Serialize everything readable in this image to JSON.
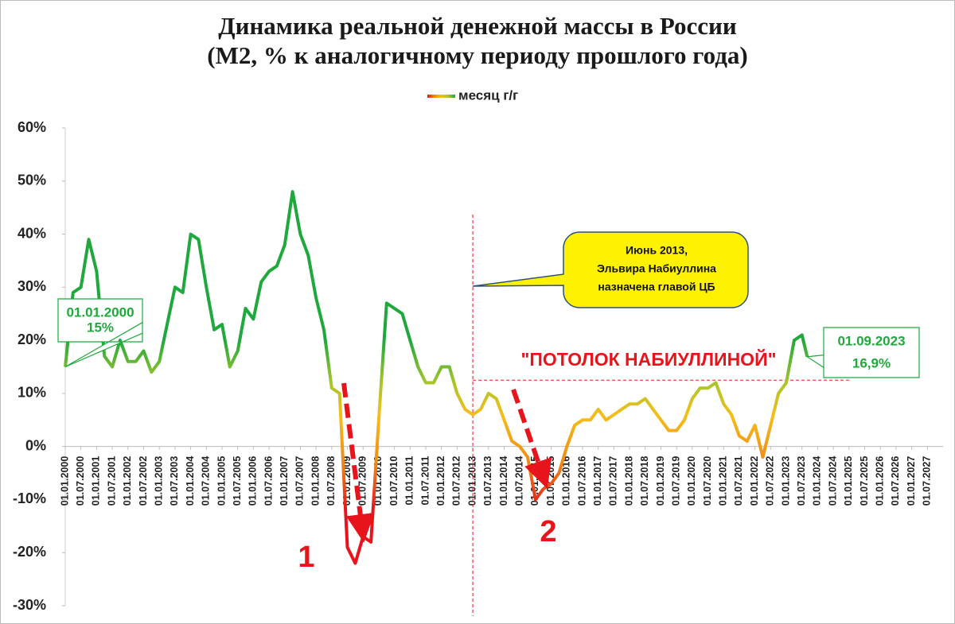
{
  "chart_data": {
    "type": "line",
    "title": "Динамика реальной денежной массы в России",
    "subtitle": "(М2, % к аналогичному периоду прошлого года)",
    "series": [
      {
        "name": "месяц г/г",
        "color_gradient": [
          {
            "value": 20,
            "color": "#1fa83c"
          },
          {
            "value": 12,
            "color": "#a6c62a"
          },
          {
            "value": 6,
            "color": "#f6be1a"
          },
          {
            "value": -3,
            "color": "#f08a14"
          },
          {
            "value": -12,
            "color": "#e8141b"
          }
        ],
        "x": [
          "01.01.2000",
          "01.04.2000",
          "01.07.2000",
          "01.10.2000",
          "01.01.2001",
          "01.04.2001",
          "01.07.2001",
          "01.10.2001",
          "01.01.2002",
          "01.04.2002",
          "01.07.2002",
          "01.10.2002",
          "01.01.2003",
          "01.04.2003",
          "01.07.2003",
          "01.10.2003",
          "01.01.2004",
          "01.04.2004",
          "01.07.2004",
          "01.10.2004",
          "01.01.2005",
          "01.04.2005",
          "01.07.2005",
          "01.10.2005",
          "01.01.2006",
          "01.04.2006",
          "01.07.2006",
          "01.10.2006",
          "01.01.2007",
          "01.04.2007",
          "01.07.2007",
          "01.10.2007",
          "01.01.2008",
          "01.04.2008",
          "01.07.2008",
          "01.10.2008",
          "01.01.2009",
          "01.04.2009",
          "01.07.2009",
          "01.10.2009",
          "01.01.2010",
          "01.04.2010",
          "01.07.2010",
          "01.10.2010",
          "01.01.2011",
          "01.04.2011",
          "01.07.2011",
          "01.10.2011",
          "01.01.2012",
          "01.04.2012",
          "01.07.2012",
          "01.10.2012",
          "01.01.2013",
          "01.04.2013",
          "01.07.2013",
          "01.10.2013",
          "01.01.2014",
          "01.04.2014",
          "01.07.2014",
          "01.10.2014",
          "01.01.2015",
          "01.04.2015",
          "01.07.2015",
          "01.10.2015",
          "01.01.2016",
          "01.04.2016",
          "01.07.2016",
          "01.10.2016",
          "01.01.2017",
          "01.04.2017",
          "01.07.2017",
          "01.10.2017",
          "01.01.2018",
          "01.04.2018",
          "01.07.2018",
          "01.10.2018",
          "01.01.2019",
          "01.04.2019",
          "01.07.2019",
          "01.10.2019",
          "01.01.2020",
          "01.04.2020",
          "01.07.2020",
          "01.10.2020",
          "01.01.2021",
          "01.04.2021",
          "01.07.2021",
          "01.10.2021",
          "01.01.2022",
          "01.04.2022",
          "01.07.2022",
          "01.10.2022",
          "01.01.2023",
          "01.04.2023",
          "01.07.2023",
          "01.09.2023"
        ],
        "values": [
          15,
          29,
          30,
          39,
          33,
          17,
          15,
          20,
          16,
          16,
          18,
          14,
          16,
          23,
          30,
          29,
          40,
          39,
          30,
          22,
          23,
          15,
          18,
          26,
          24,
          31,
          33,
          34,
          38,
          48,
          40,
          36,
          28,
          22,
          11,
          10,
          -19,
          -22,
          -17,
          -18,
          5,
          27,
          26,
          25,
          20,
          15,
          12,
          12,
          15,
          15,
          10,
          7,
          6,
          7,
          10,
          9,
          5,
          1,
          0,
          -2,
          -10,
          -8,
          -7,
          -5,
          0,
          4,
          5,
          5,
          7,
          5,
          6,
          7,
          8,
          8,
          9,
          7,
          5,
          3,
          3,
          5,
          9,
          11,
          11,
          12,
          8,
          6,
          2,
          1,
          4,
          -2,
          4,
          10,
          12,
          20,
          21,
          16.9
        ],
        "value_labels": [
          "15%",
          null,
          null,
          null,
          null,
          null,
          null,
          null,
          null,
          null,
          null,
          null,
          null,
          null,
          null,
          null,
          null,
          null,
          null,
          null,
          null,
          null,
          null,
          null,
          null,
          null,
          null,
          null,
          null,
          null,
          null,
          null,
          null,
          null,
          null,
          null,
          null,
          null,
          null,
          null,
          null,
          null,
          null,
          null,
          null,
          null,
          null,
          null,
          null,
          null,
          null,
          null,
          null,
          null,
          null,
          null,
          null,
          null,
          null,
          null,
          null,
          null,
          null,
          null,
          null,
          null,
          null,
          null,
          null,
          null,
          null,
          null,
          null,
          null,
          null,
          null,
          null,
          null,
          null,
          null,
          null,
          null,
          null,
          null,
          null,
          null,
          null,
          null,
          null,
          null,
          null,
          null,
          null,
          null,
          null,
          "16,9%"
        ]
      }
    ],
    "xlim": [
      "01.01.2000",
      "01.01.2028"
    ],
    "xticks": [
      "01.01.2000",
      "01.07.2000",
      "01.01.2001",
      "01.07.2001",
      "01.01.2002",
      "01.07.2002",
      "01.01.2003",
      "01.07.2003",
      "01.01.2004",
      "01.07.2004",
      "01.01.2005",
      "01.07.2005",
      "01.01.2006",
      "01.07.2006",
      "01.01.2007",
      "01.07.2007",
      "01.01.2008",
      "01.07.2008",
      "01.01.2009",
      "01.07.2009",
      "01.01.2010",
      "01.07.2010",
      "01.01.2011",
      "01.07.2011",
      "01.01.2012",
      "01.07.2012",
      "01.01.2013",
      "01.07.2013",
      "01.01.2014",
      "01.07.2014",
      "01.01.2015",
      "01.07.2015",
      "01.01.2016",
      "01.07.2016",
      "01.01.2017",
      "01.07.2017",
      "01.01.2018",
      "01.07.2018",
      "01.01.2019",
      "01.07.2019",
      "01.01.2020",
      "01.07.2020",
      "01.01.2021",
      "01.07.2021",
      "01.01.2022",
      "01.07.2022",
      "01.01.2023",
      "01.07.2023",
      "01.01.2024",
      "01.07.2024",
      "01.01.2025",
      "01.07.2025",
      "01.01.2026",
      "01.07.2026",
      "01.01.2027",
      "01.07.2027"
    ],
    "ylim": [
      -30,
      60
    ],
    "yticks": [
      {
        "value": -30,
        "label": "-30%"
      },
      {
        "value": -20,
        "label": "-20%"
      },
      {
        "value": -10,
        "label": "-10%"
      },
      {
        "value": 0,
        "label": "0%"
      },
      {
        "value": 10,
        "label": "10%"
      },
      {
        "value": 20,
        "label": "20%"
      },
      {
        "value": 30,
        "label": "30%"
      },
      {
        "value": 40,
        "label": "40%"
      },
      {
        "value": 50,
        "label": "50%"
      },
      {
        "value": 60,
        "label": "60%"
      }
    ],
    "legend": "top",
    "reference_lines": {
      "vline_x": "01.01.2013",
      "hline_y": 12.5,
      "hline_to": "01.01.2025"
    },
    "annotations": {
      "callout": [
        "Июнь 2013,",
        "Эльвира Набиуллина",
        "назначена главой ЦБ"
      ],
      "ceiling": "\"ПОТОЛОК НАБИУЛЛИНОЙ\"",
      "marker_1": "1",
      "marker_2": "2"
    }
  }
}
